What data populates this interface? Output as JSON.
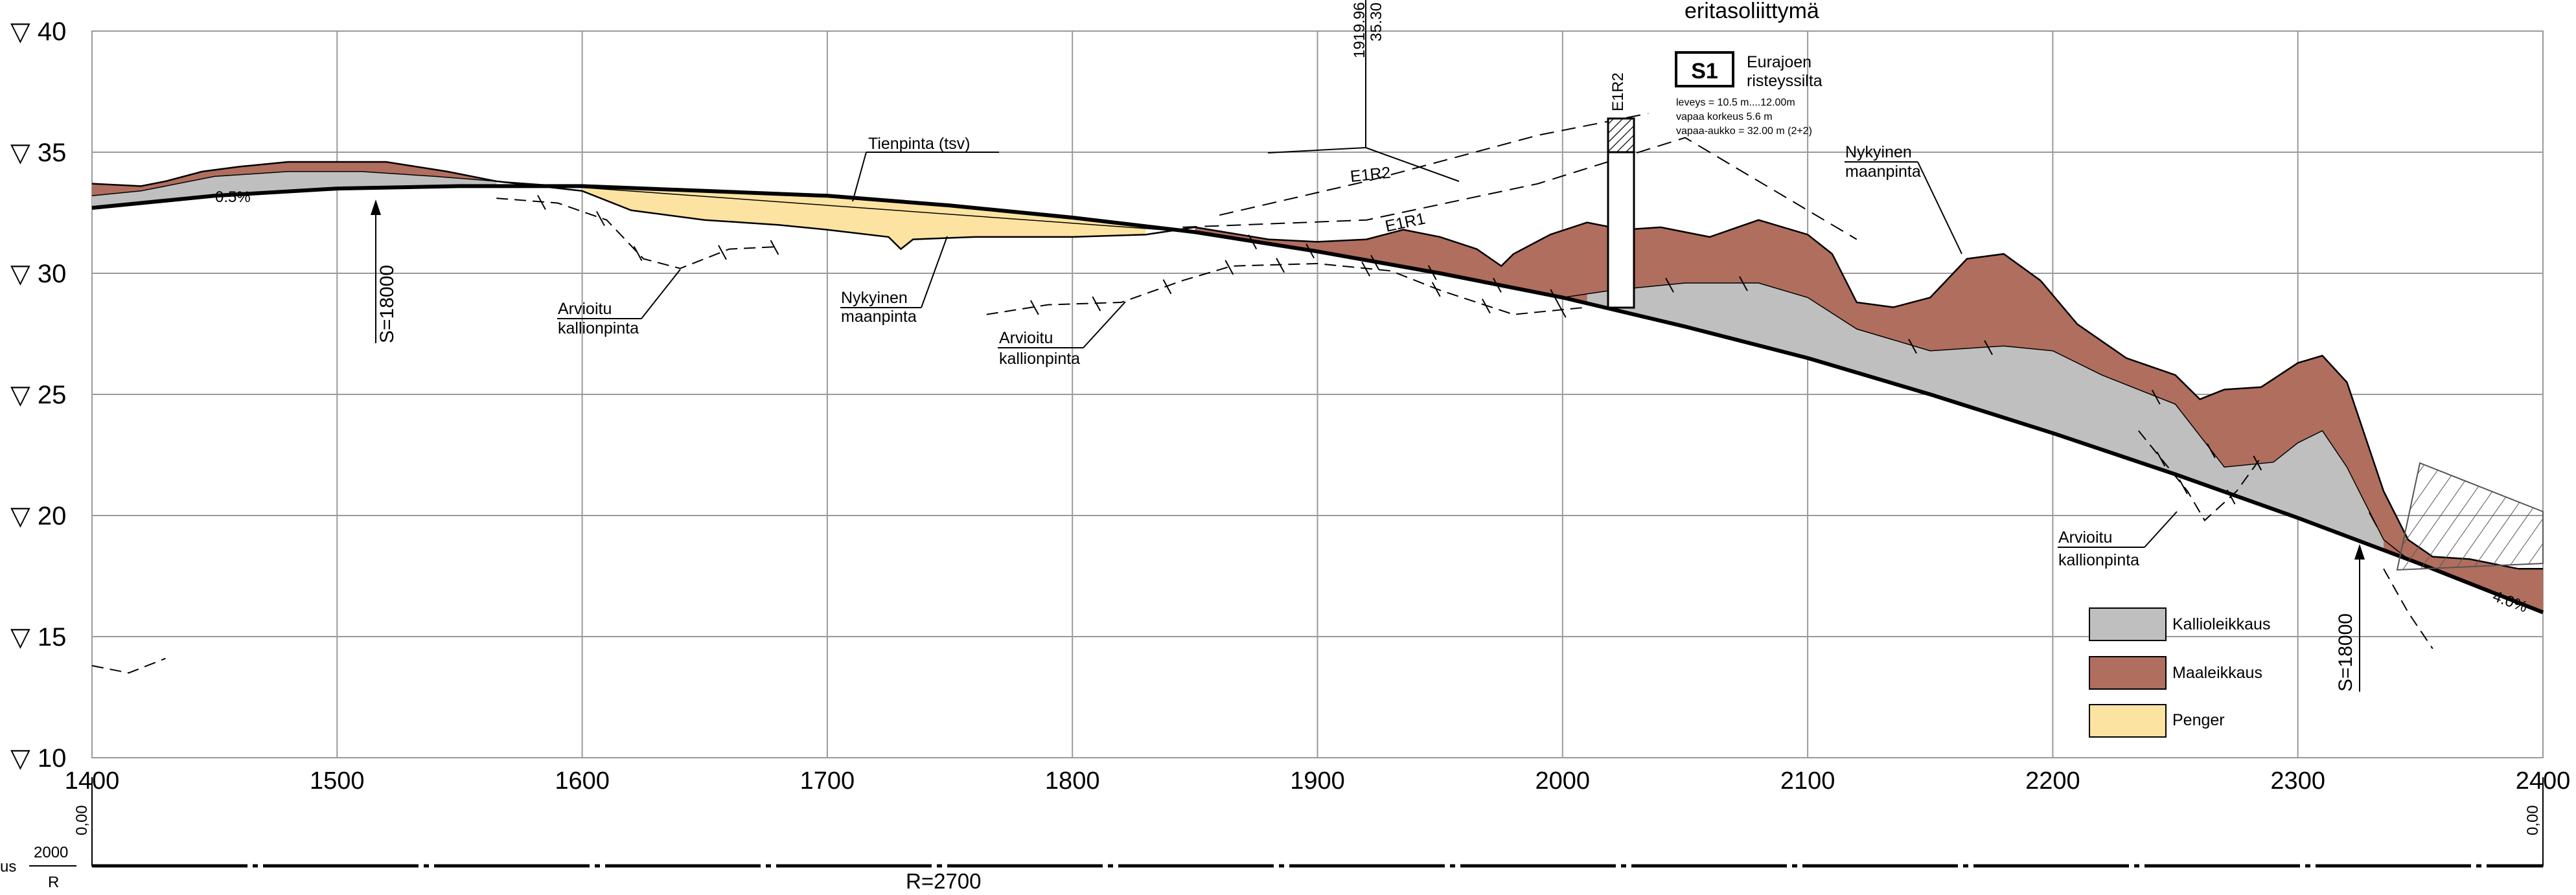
{
  "chart_data": {
    "type": "profile",
    "title": "eritasoliittymä",
    "x_axis": {
      "range": [
        1400,
        2400
      ],
      "ticks": [
        1400,
        1500,
        1600,
        1700,
        1800,
        1900,
        2000,
        2100,
        2200,
        2300,
        2400
      ]
    },
    "y_axis": {
      "range": [
        10,
        40
      ],
      "ticks": [
        10,
        15,
        20,
        25,
        30,
        35,
        40
      ],
      "tick_prefix": "▽"
    },
    "grid": true,
    "road_line": [
      [
        1400,
        32.7
      ],
      [
        1450,
        33.2
      ],
      [
        1500,
        33.5
      ],
      [
        1550,
        33.6
      ],
      [
        1600,
        33.6
      ],
      [
        1650,
        33.4
      ],
      [
        1700,
        33.2
      ],
      [
        1750,
        32.8
      ],
      [
        1800,
        32.3
      ],
      [
        1850,
        31.7
      ],
      [
        1900,
        30.9
      ],
      [
        1950,
        30.0
      ],
      [
        2000,
        29.0
      ],
      [
        2050,
        27.8
      ],
      [
        2100,
        26.5
      ],
      [
        2150,
        25.0
      ],
      [
        2200,
        23.4
      ],
      [
        2250,
        21.7
      ],
      [
        2300,
        19.9
      ],
      [
        2350,
        18.0
      ],
      [
        2400,
        16.0
      ]
    ],
    "terrain_line": [
      [
        1400,
        33.7
      ],
      [
        1420,
        33.6
      ],
      [
        1430,
        33.8
      ],
      [
        1445,
        34.2
      ],
      [
        1460,
        34.4
      ],
      [
        1480,
        34.6
      ],
      [
        1500,
        34.6
      ],
      [
        1520,
        34.6
      ],
      [
        1545,
        34.2
      ],
      [
        1565,
        33.8
      ],
      [
        1600,
        33.4
      ],
      [
        1620,
        32.6
      ],
      [
        1650,
        32.2
      ],
      [
        1680,
        32.0
      ],
      [
        1700,
        31.8
      ],
      [
        1725,
        31.5
      ],
      [
        1730,
        31.0
      ],
      [
        1735,
        31.4
      ],
      [
        1760,
        31.5
      ],
      [
        1800,
        31.5
      ],
      [
        1830,
        31.6
      ],
      [
        1850,
        31.9
      ],
      [
        1880,
        31.4
      ],
      [
        1900,
        31.3
      ],
      [
        1920,
        31.4
      ],
      [
        1935,
        31.8
      ],
      [
        1950,
        31.5
      ],
      [
        1965,
        31.0
      ],
      [
        1975,
        30.3
      ],
      [
        1980,
        30.8
      ],
      [
        1995,
        31.6
      ],
      [
        2010,
        32.1
      ],
      [
        2025,
        31.8
      ],
      [
        2040,
        31.9
      ],
      [
        2060,
        31.5
      ],
      [
        2080,
        32.2
      ],
      [
        2100,
        31.6
      ],
      [
        2110,
        30.8
      ],
      [
        2120,
        28.8
      ],
      [
        2135,
        28.6
      ],
      [
        2150,
        29.0
      ],
      [
        2165,
        30.6
      ],
      [
        2180,
        30.8
      ],
      [
        2195,
        29.7
      ],
      [
        2210,
        27.9
      ],
      [
        2230,
        26.5
      ],
      [
        2250,
        25.8
      ],
      [
        2260,
        24.8
      ],
      [
        2270,
        25.2
      ],
      [
        2285,
        25.3
      ],
      [
        2300,
        26.3
      ],
      [
        2310,
        26.6
      ],
      [
        2320,
        25.5
      ],
      [
        2335,
        21.0
      ],
      [
        2345,
        19.0
      ],
      [
        2355,
        18.3
      ],
      [
        2370,
        18.2
      ],
      [
        2390,
        17.8
      ],
      [
        2400,
        17.8
      ]
    ],
    "rock_line": [
      [
        1400,
        33.2
      ],
      [
        1420,
        33.4
      ],
      [
        1450,
        34.0
      ],
      [
        1480,
        34.2
      ],
      [
        1510,
        34.2
      ],
      [
        1540,
        34.0
      ],
      [
        1565,
        33.8
      ],
      [
        1850,
        31.7
      ],
      [
        1900,
        30.9
      ],
      [
        1950,
        30.0
      ],
      [
        2000,
        29.0
      ],
      [
        2020,
        29.3
      ],
      [
        2050,
        29.6
      ],
      [
        2080,
        29.6
      ],
      [
        2100,
        29.0
      ],
      [
        2120,
        27.7
      ],
      [
        2150,
        26.8
      ],
      [
        2180,
        27.0
      ],
      [
        2200,
        26.8
      ],
      [
        2220,
        25.8
      ],
      [
        2250,
        24.6
      ],
      [
        2270,
        22.0
      ],
      [
        2290,
        22.2
      ],
      [
        2300,
        23.0
      ],
      [
        2310,
        23.5
      ],
      [
        2320,
        22.0
      ],
      [
        2335,
        19.0
      ],
      [
        2345,
        18.2
      ]
    ],
    "estimated_rock_line": [
      [
        1565,
        33.1
      ],
      [
        1590,
        32.9
      ],
      [
        1610,
        32.2
      ],
      [
        1625,
        30.6
      ],
      [
        1640,
        30.2
      ],
      [
        1660,
        31.0
      ],
      [
        1680,
        31.1
      ]
    ],
    "estimated_rock_line_2": [
      [
        1765,
        28.3
      ],
      [
        1790,
        28.7
      ],
      [
        1820,
        28.8
      ],
      [
        1845,
        29.7
      ],
      [
        1865,
        30.3
      ],
      [
        1900,
        30.4
      ],
      [
        1930,
        30.1
      ],
      [
        1950,
        29.3
      ],
      [
        1980,
        28.3
      ],
      [
        2010,
        28.6
      ]
    ],
    "estimated_rock_line_3": [
      [
        2235,
        23.5
      ],
      [
        2255,
        21.0
      ],
      [
        2262,
        19.8
      ],
      [
        2275,
        21.0
      ],
      [
        2285,
        22.4
      ]
    ],
    "estimated_rock_line_4": [
      [
        2335,
        17.8
      ],
      [
        2345,
        16.0
      ],
      [
        2355,
        14.5
      ]
    ],
    "estimated_rock_line_5": [
      [
        1400,
        13.8
      ],
      [
        1415,
        13.5
      ],
      [
        1430,
        14.1
      ]
    ],
    "ramp_E1R1": [
      [
        1845,
        31.9
      ],
      [
        1920,
        32.2
      ],
      [
        1990,
        33.7
      ],
      [
        2050,
        35.6
      ],
      [
        2120,
        31.4
      ]
    ],
    "ramp_E1R2": [
      [
        1860,
        32.4
      ],
      [
        1920,
        33.8
      ],
      [
        1990,
        35.7
      ],
      [
        2035,
        36.6
      ]
    ],
    "labels": {
      "tienpinta": "Tienpinta (tsv)",
      "nykyinen_l1": "Nykyinen",
      "nykyinen_l2": "maanpinta",
      "arvioitu_l1": "Arvioitu",
      "arvioitu_l2": "kallionpinta",
      "slope_left": "0.5%",
      "slope_right": "4.0%",
      "s_left": "S=18000",
      "s_right": "S=18000",
      "e1r1": "E1R1",
      "e1r2": "E1R2",
      "e1r2_vertical": "E1R2",
      "crossing_station": "1919.96",
      "crossing_height": "35.30"
    },
    "bridge": {
      "code": "S1",
      "name_l1": "Eurajoen",
      "name_l2": "risteyssilta",
      "detail_1": "leveys = 10.5 m....12.00m",
      "detail_2": "vapaa korkeus 5.6 m",
      "detail_3": "vapaa-aukko = 32.00 m (2+2)"
    },
    "legend": {
      "position": "bottom-right",
      "items": [
        {
          "label": "Kallioleikkaus",
          "color": "#bfbfbf"
        },
        {
          "label": "Maaleikkaus",
          "color": "#b06e5e"
        },
        {
          "label": "Penger",
          "color": "#fce3a2"
        }
      ]
    },
    "bottom_strip": {
      "left_value": "0,00",
      "right_value": "0,00",
      "radius_small": "2000",
      "r_label": "R",
      "left_cut": "us",
      "radius_label": "R=2700"
    },
    "colors": {
      "rock_cut": "#bfbfbf",
      "soil_cut": "#b06e5e",
      "embankment": "#fce3a2",
      "grid": "#9a9a9a",
      "line": "#000000"
    }
  }
}
